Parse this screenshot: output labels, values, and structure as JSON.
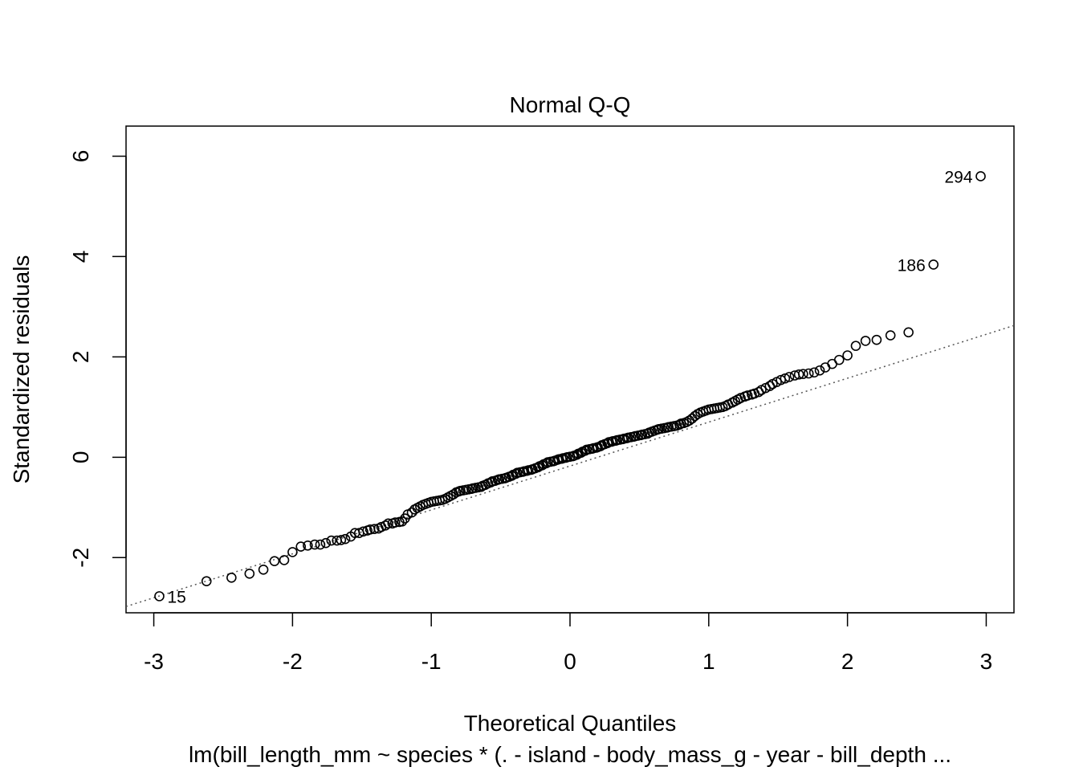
{
  "colors": {
    "background": "#ffffff",
    "foreground": "#000000",
    "reference_line": "#555555"
  },
  "chart_data": {
    "type": "scatter",
    "title": "Normal Q-Q",
    "xlabel": "Theoretical Quantiles",
    "ylabel": "Standardized residuals",
    "subtitle": "lm(bill_length_mm ~ species * (. - island - body_mass_g - year - bill_depth ...",
    "xlim": [
      -3.2,
      3.2
    ],
    "ylim": [
      -3.1,
      6.6
    ],
    "x_ticks": [
      -3,
      -2,
      -1,
      0,
      1,
      2,
      3
    ],
    "x_tick_labels": [
      "-3",
      "-2",
      "-1",
      "0",
      "1",
      "2",
      "3"
    ],
    "y_ticks": [
      -2,
      0,
      2,
      4,
      6
    ],
    "y_tick_labels": [
      "-2",
      "0",
      "2",
      "4",
      "6"
    ],
    "marker": "open-circle",
    "grid": false,
    "reference_line": {
      "style": "dotted",
      "points": [
        [
          -3,
          -2.8
        ],
        [
          3,
          2.45
        ]
      ]
    },
    "labeled_points": [
      {
        "label": "15",
        "x": -2.96,
        "y": -2.77
      },
      {
        "label": "186",
        "x": 2.62,
        "y": 3.84
      },
      {
        "label": "294",
        "x": 2.96,
        "y": 5.6
      }
    ],
    "points": [
      [
        -2.96,
        -2.77
      ],
      [
        -2.62,
        -2.47
      ],
      [
        -2.44,
        -2.4
      ],
      [
        -2.31,
        -2.32
      ],
      [
        -2.21,
        -2.24
      ],
      [
        -2.13,
        -2.07
      ],
      [
        -2.06,
        -2.05
      ],
      [
        -2.0,
        -1.89
      ],
      [
        -1.94,
        -1.78
      ],
      [
        -1.89,
        -1.76
      ],
      [
        -1.84,
        -1.74
      ],
      [
        -1.8,
        -1.74
      ],
      [
        -1.76,
        -1.71
      ],
      [
        -1.72,
        -1.66
      ],
      [
        -1.68,
        -1.66
      ],
      [
        -1.65,
        -1.65
      ],
      [
        -1.62,
        -1.63
      ],
      [
        -1.58,
        -1.58
      ],
      [
        -1.55,
        -1.51
      ],
      [
        -1.52,
        -1.51
      ],
      [
        -1.49,
        -1.48
      ],
      [
        -1.46,
        -1.46
      ],
      [
        -1.44,
        -1.44
      ],
      [
        -1.41,
        -1.43
      ],
      [
        -1.38,
        -1.42
      ],
      [
        -1.36,
        -1.39
      ],
      [
        -1.33,
        -1.36
      ],
      [
        -1.31,
        -1.32
      ],
      [
        -1.28,
        -1.32
      ],
      [
        -1.26,
        -1.3
      ],
      [
        -1.23,
        -1.29
      ],
      [
        -1.21,
        -1.28
      ],
      [
        -1.19,
        -1.22
      ],
      [
        -1.17,
        -1.14
      ],
      [
        -1.14,
        -1.1
      ],
      [
        -1.12,
        -1.04
      ],
      [
        -1.1,
        -1.01
      ],
      [
        -1.08,
        -0.98
      ],
      [
        -1.06,
        -0.95
      ],
      [
        -1.04,
        -0.93
      ],
      [
        -1.02,
        -0.91
      ],
      [
        -1.0,
        -0.89
      ],
      [
        -0.98,
        -0.88
      ],
      [
        -0.96,
        -0.87
      ],
      [
        -0.94,
        -0.86
      ],
      [
        -0.92,
        -0.85
      ],
      [
        -0.9,
        -0.83
      ],
      [
        -0.88,
        -0.8
      ],
      [
        -0.86,
        -0.77
      ],
      [
        -0.84,
        -0.74
      ],
      [
        -0.82,
        -0.7
      ],
      [
        -0.8,
        -0.68
      ],
      [
        -0.79,
        -0.67
      ],
      [
        -0.77,
        -0.66
      ],
      [
        -0.75,
        -0.65
      ],
      [
        -0.73,
        -0.64
      ],
      [
        -0.71,
        -0.63
      ],
      [
        -0.7,
        -0.62
      ],
      [
        -0.68,
        -0.61
      ],
      [
        -0.66,
        -0.6
      ],
      [
        -0.64,
        -0.59
      ],
      [
        -0.63,
        -0.57
      ],
      [
        -0.61,
        -0.55
      ],
      [
        -0.59,
        -0.52
      ],
      [
        -0.57,
        -0.5
      ],
      [
        -0.56,
        -0.48
      ],
      [
        -0.54,
        -0.47
      ],
      [
        -0.52,
        -0.45
      ],
      [
        -0.51,
        -0.44
      ],
      [
        -0.49,
        -0.43
      ],
      [
        -0.47,
        -0.42
      ],
      [
        -0.46,
        -0.41
      ],
      [
        -0.44,
        -0.39
      ],
      [
        -0.42,
        -0.37
      ],
      [
        -0.41,
        -0.35
      ],
      [
        -0.39,
        -0.33
      ],
      [
        -0.38,
        -0.31
      ],
      [
        -0.36,
        -0.3
      ],
      [
        -0.34,
        -0.29
      ],
      [
        -0.33,
        -0.28
      ],
      [
        -0.31,
        -0.27
      ],
      [
        -0.3,
        -0.26
      ],
      [
        -0.28,
        -0.25
      ],
      [
        -0.27,
        -0.24
      ],
      [
        -0.25,
        -0.22
      ],
      [
        -0.23,
        -0.2
      ],
      [
        -0.22,
        -0.18
      ],
      [
        -0.2,
        -0.16
      ],
      [
        -0.19,
        -0.14
      ],
      [
        -0.17,
        -0.12
      ],
      [
        -0.16,
        -0.1
      ],
      [
        -0.14,
        -0.09
      ],
      [
        -0.12,
        -0.08
      ],
      [
        -0.11,
        -0.07
      ],
      [
        -0.09,
        -0.05
      ],
      [
        -0.08,
        -0.04
      ],
      [
        -0.06,
        -0.03
      ],
      [
        -0.05,
        -0.02
      ],
      [
        -0.03,
        -0.01
      ],
      [
        -0.02,
        0.0
      ],
      [
        0.0,
        0.01
      ],
      [
        0.02,
        0.02
      ],
      [
        0.03,
        0.03
      ],
      [
        0.05,
        0.05
      ],
      [
        0.06,
        0.07
      ],
      [
        0.08,
        0.09
      ],
      [
        0.09,
        0.11
      ],
      [
        0.11,
        0.13
      ],
      [
        0.12,
        0.15
      ],
      [
        0.14,
        0.16
      ],
      [
        0.16,
        0.17
      ],
      [
        0.17,
        0.18
      ],
      [
        0.19,
        0.19
      ],
      [
        0.2,
        0.2
      ],
      [
        0.22,
        0.22
      ],
      [
        0.23,
        0.24
      ],
      [
        0.25,
        0.26
      ],
      [
        0.27,
        0.28
      ],
      [
        0.28,
        0.3
      ],
      [
        0.3,
        0.31
      ],
      [
        0.31,
        0.32
      ],
      [
        0.33,
        0.33
      ],
      [
        0.34,
        0.34
      ],
      [
        0.36,
        0.35
      ],
      [
        0.38,
        0.36
      ],
      [
        0.39,
        0.37
      ],
      [
        0.41,
        0.38
      ],
      [
        0.42,
        0.39
      ],
      [
        0.44,
        0.4
      ],
      [
        0.46,
        0.41
      ],
      [
        0.47,
        0.42
      ],
      [
        0.49,
        0.43
      ],
      [
        0.51,
        0.44
      ],
      [
        0.52,
        0.45
      ],
      [
        0.54,
        0.46
      ],
      [
        0.56,
        0.47
      ],
      [
        0.57,
        0.49
      ],
      [
        0.59,
        0.51
      ],
      [
        0.61,
        0.53
      ],
      [
        0.63,
        0.55
      ],
      [
        0.64,
        0.56
      ],
      [
        0.66,
        0.57
      ],
      [
        0.68,
        0.58
      ],
      [
        0.7,
        0.59
      ],
      [
        0.71,
        0.6
      ],
      [
        0.73,
        0.61
      ],
      [
        0.75,
        0.62
      ],
      [
        0.77,
        0.63
      ],
      [
        0.79,
        0.65
      ],
      [
        0.8,
        0.67
      ],
      [
        0.82,
        0.68
      ],
      [
        0.84,
        0.7
      ],
      [
        0.86,
        0.73
      ],
      [
        0.88,
        0.77
      ],
      [
        0.9,
        0.82
      ],
      [
        0.92,
        0.86
      ],
      [
        0.94,
        0.89
      ],
      [
        0.96,
        0.91
      ],
      [
        0.98,
        0.93
      ],
      [
        1.0,
        0.95
      ],
      [
        1.02,
        0.96
      ],
      [
        1.04,
        0.97
      ],
      [
        1.06,
        0.98
      ],
      [
        1.08,
        0.99
      ],
      [
        1.1,
        1.0
      ],
      [
        1.12,
        1.02
      ],
      [
        1.14,
        1.05
      ],
      [
        1.17,
        1.09
      ],
      [
        1.19,
        1.12
      ],
      [
        1.21,
        1.15
      ],
      [
        1.23,
        1.18
      ],
      [
        1.26,
        1.21
      ],
      [
        1.28,
        1.23
      ],
      [
        1.31,
        1.25
      ],
      [
        1.33,
        1.27
      ],
      [
        1.36,
        1.3
      ],
      [
        1.38,
        1.34
      ],
      [
        1.41,
        1.38
      ],
      [
        1.44,
        1.42
      ],
      [
        1.46,
        1.46
      ],
      [
        1.49,
        1.5
      ],
      [
        1.52,
        1.54
      ],
      [
        1.55,
        1.57
      ],
      [
        1.58,
        1.6
      ],
      [
        1.62,
        1.63
      ],
      [
        1.65,
        1.65
      ],
      [
        1.68,
        1.66
      ],
      [
        1.72,
        1.67
      ],
      [
        1.76,
        1.69
      ],
      [
        1.8,
        1.73
      ],
      [
        1.84,
        1.79
      ],
      [
        1.89,
        1.86
      ],
      [
        1.94,
        1.94
      ],
      [
        2.0,
        2.03
      ],
      [
        2.06,
        2.22
      ],
      [
        2.13,
        2.32
      ],
      [
        2.21,
        2.34
      ],
      [
        2.31,
        2.43
      ],
      [
        2.44,
        2.49
      ],
      [
        2.62,
        3.84
      ],
      [
        2.96,
        5.6
      ]
    ]
  }
}
